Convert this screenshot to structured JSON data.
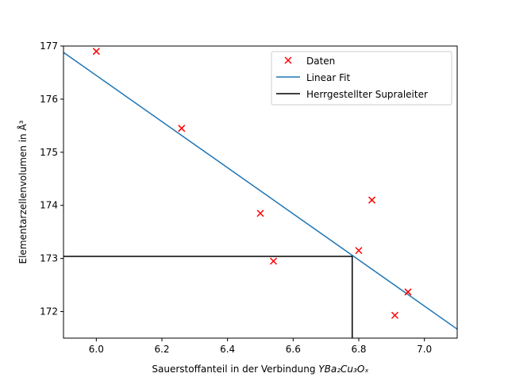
{
  "chart_data": {
    "type": "scatter",
    "xlabel_main": "Sauerstoffanteil in der Verbindung ",
    "xlabel_formula": "YBa₂Cu₃Oₓ",
    "ylabel": "Elementarzellenvolumen in Å³",
    "xlim": [
      5.9,
      7.1
    ],
    "ylim": [
      171.5,
      177.0
    ],
    "xticks": [
      "6.0",
      "6.2",
      "6.4",
      "6.6",
      "6.8",
      "7.0"
    ],
    "yticks": [
      "172",
      "173",
      "174",
      "175",
      "176",
      "177"
    ],
    "grid": false,
    "legend_position": "top-right",
    "legend": {
      "daten": "Daten",
      "fit": "Linear Fit",
      "supra": "Herrgestellter Supraleiter"
    },
    "series": [
      {
        "name": "Daten",
        "type": "scatter",
        "marker": "x",
        "color": "#ff0000",
        "x": [
          6.0,
          6.26,
          6.5,
          6.54,
          6.8,
          6.84,
          6.91,
          6.95
        ],
        "y": [
          176.9,
          175.45,
          173.85,
          172.95,
          173.15,
          174.1,
          171.93,
          172.37
        ]
      },
      {
        "name": "Linear Fit",
        "type": "line",
        "color": "#1f77b4",
        "x": [
          5.9,
          7.1
        ],
        "y": [
          176.88,
          171.67
        ]
      },
      {
        "name": "Herrgestellter Supraleiter",
        "type": "line",
        "color": "#000000",
        "x": [
          5.9,
          6.78,
          6.78
        ],
        "y": [
          173.04,
          173.04,
          171.5
        ]
      }
    ]
  }
}
